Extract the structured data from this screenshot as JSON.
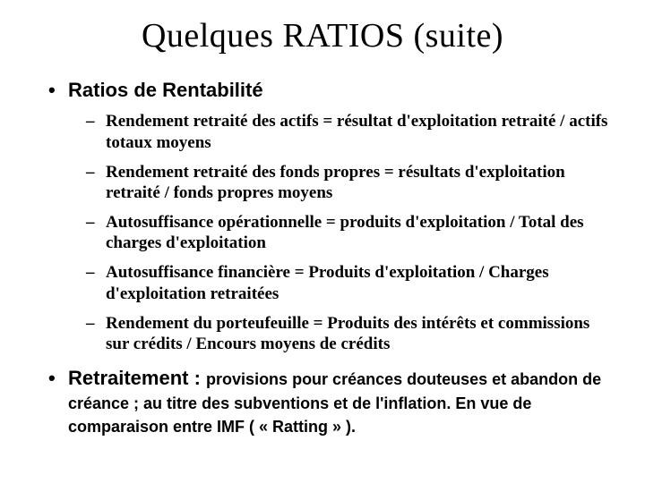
{
  "title": "Quelques RATIOS (suite)",
  "section1": {
    "heading": "Ratios de Rentabilité",
    "items": [
      "Rendement retraité des actifs = résultat d'exploitation retraité / actifs totaux moyens",
      "Rendement retraité des fonds propres = résultats d'exploitation retraité / fonds propres moyens",
      "Autosuffisance opérationnelle = produits d'exploitation / Total des charges d'exploitation",
      "Autosuffisance financière =  Produits d'exploitation /  Charges d'exploitation retraitées",
      "Rendement du porteufeuille =  Produits des intérêts et commissions sur crédits / Encours moyens de crédits"
    ]
  },
  "section2": {
    "lead": "Retraitement : ",
    "rest": "provisions pour créances douteuses et abandon de créance ; au titre des subventions et de l'inflation. En vue de comparaison entre IMF ( « Ratting » ).",
    "text_color": "#000000"
  },
  "colors": {
    "background": "#ffffff",
    "text": "#000000"
  }
}
